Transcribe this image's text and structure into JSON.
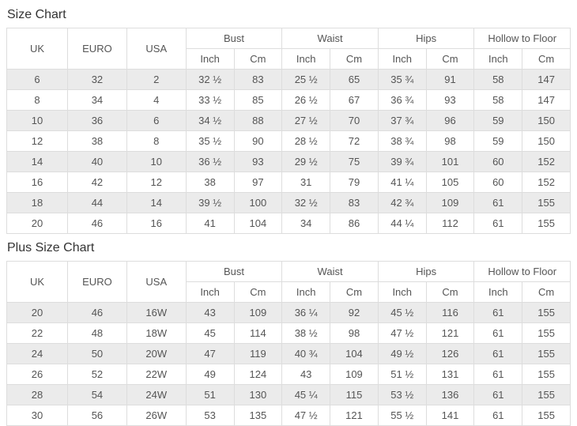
{
  "titles": {
    "size_chart": "Size Chart",
    "plus_size_chart": "Plus Size Chart"
  },
  "headers": {
    "uk": "UK",
    "euro": "EURO",
    "usa": "USA",
    "groups": [
      "Bust",
      "Waist",
      "Hips",
      "Hollow to Floor"
    ],
    "units": [
      "Inch",
      "Cm"
    ]
  },
  "size_chart": {
    "rows": [
      [
        "6",
        "32",
        "2",
        "32 ½",
        "83",
        "25 ½",
        "65",
        "35 ¾",
        "91",
        "58",
        "147"
      ],
      [
        "8",
        "34",
        "4",
        "33 ½",
        "85",
        "26 ½",
        "67",
        "36 ¾",
        "93",
        "58",
        "147"
      ],
      [
        "10",
        "36",
        "6",
        "34 ½",
        "88",
        "27 ½",
        "70",
        "37 ¾",
        "96",
        "59",
        "150"
      ],
      [
        "12",
        "38",
        "8",
        "35 ½",
        "90",
        "28 ½",
        "72",
        "38 ¾",
        "98",
        "59",
        "150"
      ],
      [
        "14",
        "40",
        "10",
        "36 ½",
        "93",
        "29 ½",
        "75",
        "39 ¾",
        "101",
        "60",
        "152"
      ],
      [
        "16",
        "42",
        "12",
        "38",
        "97",
        "31",
        "79",
        "41 ¼",
        "105",
        "60",
        "152"
      ],
      [
        "18",
        "44",
        "14",
        "39 ½",
        "100",
        "32 ½",
        "83",
        "42 ¾",
        "109",
        "61",
        "155"
      ],
      [
        "20",
        "46",
        "16",
        "41",
        "104",
        "34",
        "86",
        "44 ¼",
        "112",
        "61",
        "155"
      ]
    ]
  },
  "plus_size_chart": {
    "rows": [
      [
        "20",
        "46",
        "16W",
        "43",
        "109",
        "36 ¼",
        "92",
        "45 ½",
        "116",
        "61",
        "155"
      ],
      [
        "22",
        "48",
        "18W",
        "45",
        "114",
        "38 ½",
        "98",
        "47 ½",
        "121",
        "61",
        "155"
      ],
      [
        "24",
        "50",
        "20W",
        "47",
        "119",
        "40 ¾",
        "104",
        "49 ½",
        "126",
        "61",
        "155"
      ],
      [
        "26",
        "52",
        "22W",
        "49",
        "124",
        "43",
        "109",
        "51 ½",
        "131",
        "61",
        "155"
      ],
      [
        "28",
        "54",
        "24W",
        "51",
        "130",
        "45 ¼",
        "115",
        "53 ½",
        "136",
        "61",
        "155"
      ],
      [
        "30",
        "56",
        "26W",
        "53",
        "135",
        "47 ½",
        "121",
        "55 ½",
        "141",
        "61",
        "155"
      ]
    ]
  },
  "colors": {
    "bg": "#ffffff",
    "stripe": "#ebebeb",
    "border": "#dddddd",
    "cell-text": "#555555",
    "title-text": "#333333"
  }
}
